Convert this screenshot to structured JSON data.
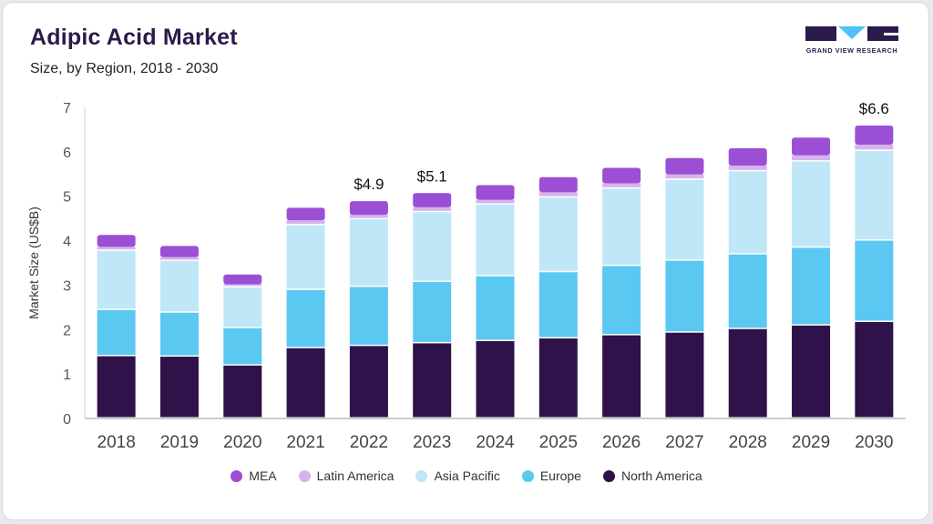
{
  "header": {
    "title": "Adipic Acid Market",
    "subtitle": "Size, by Region, 2018 - 2030"
  },
  "logo": {
    "text": "GRAND VIEW RESEARCH",
    "color": "#2b1a4c",
    "accent": "#4fc3f7"
  },
  "chart_data": {
    "type": "bar",
    "stacked": true,
    "title": "Adipic Acid Market",
    "subtitle": "Size, by Region, 2018 - 2030",
    "xlabel": "",
    "ylabel": "Market Size (US$B)",
    "ylim": [
      0,
      7
    ],
    "yticks": [
      "0",
      "1",
      "2",
      "3",
      "4",
      "5",
      "6",
      "7"
    ],
    "grid": false,
    "legend_position": "bottom",
    "categories": [
      "2018",
      "2019",
      "2020",
      "2021",
      "2022",
      "2023",
      "2024",
      "2025",
      "2026",
      "2027",
      "2028",
      "2029",
      "2030"
    ],
    "series": [
      {
        "name": "North America",
        "color": "#2e1249",
        "values": [
          1.4,
          1.39,
          1.19,
          1.58,
          1.63,
          1.69,
          1.74,
          1.8,
          1.87,
          1.93,
          2.01,
          2.09,
          2.17
        ]
      },
      {
        "name": "Europe",
        "color": "#5bc8f2",
        "values": [
          1.04,
          0.99,
          0.84,
          1.31,
          1.33,
          1.38,
          1.46,
          1.49,
          1.56,
          1.62,
          1.68,
          1.75,
          1.83
        ]
      },
      {
        "name": "Asia Pacific",
        "color": "#bfe7f8",
        "values": [
          1.33,
          1.16,
          0.92,
          1.46,
          1.52,
          1.57,
          1.61,
          1.68,
          1.74,
          1.82,
          1.87,
          1.94,
          2.02
        ]
      },
      {
        "name": "Latin America",
        "color": "#d7b3ee",
        "values": [
          0.09,
          0.09,
          0.07,
          0.11,
          0.1,
          0.11,
          0.11,
          0.12,
          0.12,
          0.12,
          0.13,
          0.14,
          0.14
        ]
      },
      {
        "name": "MEA",
        "color": "#9a4fd4",
        "values": [
          0.27,
          0.25,
          0.22,
          0.28,
          0.31,
          0.32,
          0.33,
          0.34,
          0.35,
          0.37,
          0.39,
          0.4,
          0.43
        ]
      }
    ],
    "legend_order": [
      "MEA",
      "Latin America",
      "Asia Pacific",
      "Europe",
      "North America"
    ],
    "annotations": [
      {
        "category": "2022",
        "label": "$4.9"
      },
      {
        "category": "2023",
        "label": "$5.1"
      },
      {
        "category": "2030",
        "label": "$6.6"
      }
    ]
  }
}
